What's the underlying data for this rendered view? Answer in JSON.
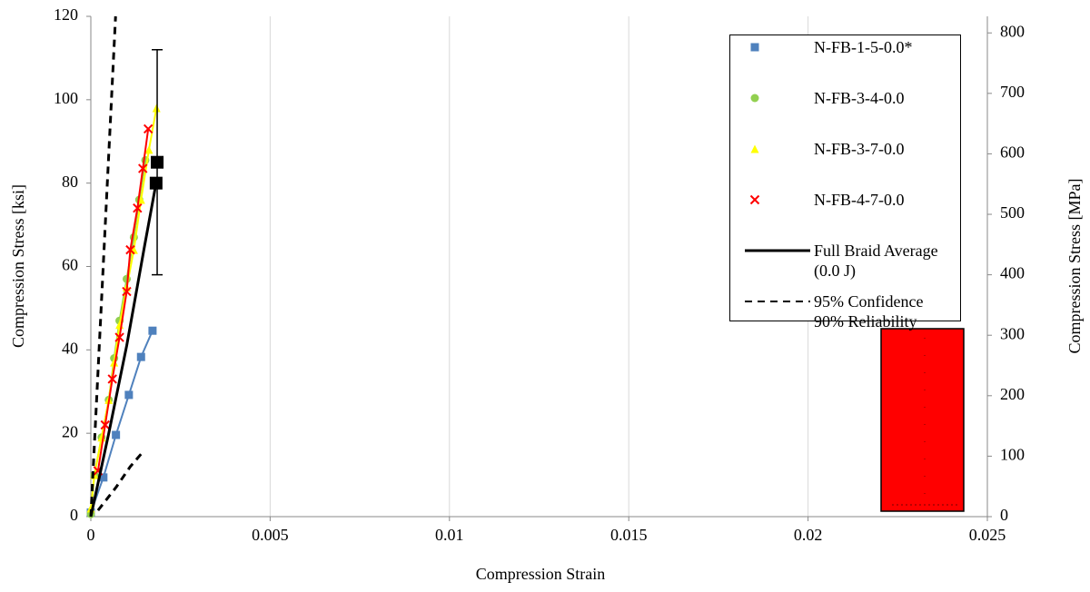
{
  "chart_data": {
    "type": "scatter",
    "x_label": "Compression Strain",
    "y_label": "Compression Stress [ksi]",
    "y2_label": "Compression Stress [MPa]",
    "xlim": [
      0,
      0.025
    ],
    "xticks": [
      0,
      0.005,
      0.01,
      0.015,
      0.02,
      0.025
    ],
    "ylim": [
      0,
      120
    ],
    "yticks": [
      0,
      20,
      40,
      60,
      80,
      100,
      120
    ],
    "y2lim": [
      0,
      827.4
    ],
    "y2ticks": [
      0,
      100,
      200,
      300,
      400,
      500,
      600,
      700,
      800
    ],
    "grid": "x",
    "series": [
      {
        "name": "N-FB-1-5-0.0*",
        "color": "#4f81bd",
        "marker": "square",
        "line": "solid",
        "x": [
          0,
          0.00035,
          0.0007,
          0.00106,
          0.0014,
          0.00172
        ],
        "values": [
          1,
          9.4,
          19.6,
          29.2,
          38.3,
          44.6
        ]
      },
      {
        "name": "N-FB-3-4-0.0",
        "color": "#92d050",
        "marker": "circle",
        "line": "solid",
        "x": [
          0,
          0.0001,
          0.0003,
          0.0005,
          0.00065,
          0.0008,
          0.001,
          0.0012,
          0.00135,
          0.00152
        ],
        "values": [
          0.6,
          10,
          19,
          28,
          38,
          47,
          57,
          67,
          76,
          85.5
        ]
      },
      {
        "name": "N-FB-3-7-0.0",
        "color": "#ffff00",
        "marker": "triangle",
        "line": "solid",
        "x": [
          0,
          0.0001,
          0.0003,
          0.0005,
          0.00065,
          0.0008,
          0.001,
          0.0012,
          0.0014,
          0.00162,
          0.00183
        ],
        "values": [
          2,
          10,
          19,
          28,
          37,
          46,
          55,
          64,
          76,
          88,
          98
        ]
      },
      {
        "name": "N-FB-4-7-0.0",
        "color": "#ff0000",
        "marker": "x",
        "line": "solid",
        "x": [
          0.0002,
          0.0004,
          0.0006,
          0.0008,
          0.001,
          0.0011,
          0.0013,
          0.00145,
          0.0016
        ],
        "values": [
          11,
          22,
          33,
          43,
          54,
          64,
          74,
          83.5,
          93
        ]
      },
      {
        "name": "Full Braid Average (0.0 J)",
        "color": "#000000",
        "marker": "none",
        "line": "solid",
        "end_marker": "square",
        "x": [
          0,
          0.0005,
          0.001,
          0.0015,
          0.00182
        ],
        "values": [
          0,
          20,
          41,
          65,
          80
        ]
      },
      {
        "name": "95% Confidence 90% Reliability",
        "color": "#000000",
        "marker": "none",
        "line": "dashed",
        "x": [
          0,
          0.00069,
          null,
          0.0002,
          0.0007,
          0.0011,
          0.00145
        ],
        "values": [
          0,
          120,
          null,
          1.5,
          7,
          12,
          15.5
        ]
      }
    ],
    "error_bar": {
      "x": 0.00185,
      "y": 85,
      "err": 27,
      "color": "#000000"
    }
  }
}
